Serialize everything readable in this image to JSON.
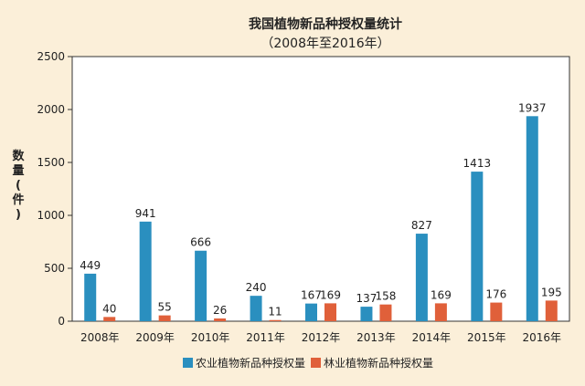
{
  "chart_data": {
    "type": "bar",
    "title": "我国植物新品种授权量统计",
    "subtitle": "（2008年至2016年）",
    "ylabel": "数量(件)",
    "xlabel": "",
    "categories": [
      "2008年",
      "2009年",
      "2010年",
      "2011年",
      "2012年",
      "2013年",
      "2014年",
      "2015年",
      "2016年"
    ],
    "series": [
      {
        "name": "农业植物新品种授权量",
        "values": [
          449,
          941,
          666,
          240,
          167,
          137,
          827,
          1413,
          1937
        ]
      },
      {
        "name": "林业植物新品种授权量",
        "values": [
          40,
          55,
          26,
          11,
          169,
          158,
          169,
          176,
          195
        ]
      }
    ],
    "ylim": [
      0,
      2500
    ],
    "yticks": [
      0,
      500,
      1000,
      1500,
      2000,
      2500
    ],
    "grid": false,
    "legend_position": "bottom",
    "colors": {
      "agri": "#2a8fbf",
      "forest": "#e0603a",
      "background": "#fbefd9",
      "plot_background": "#ffffff"
    }
  }
}
